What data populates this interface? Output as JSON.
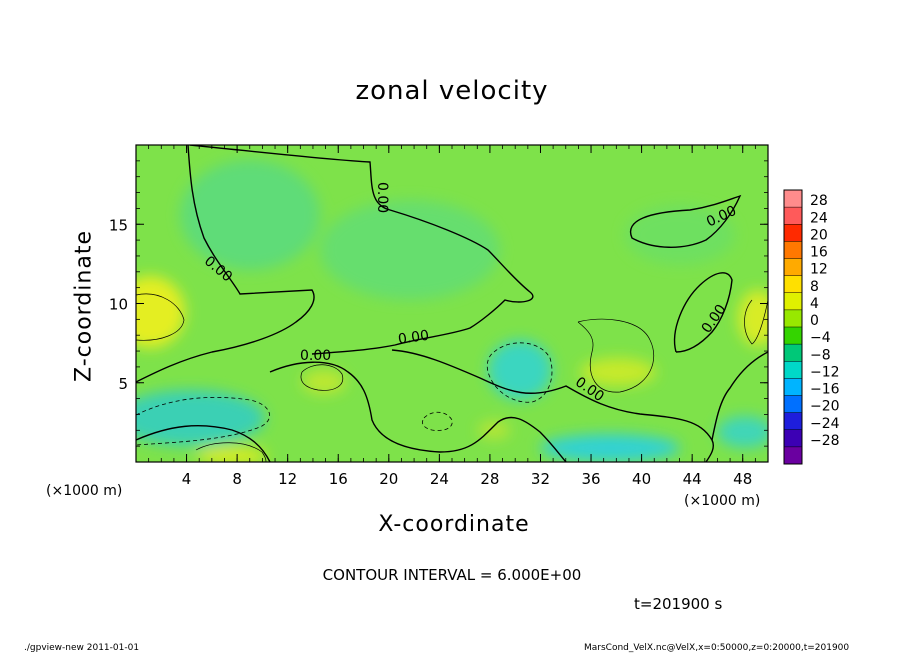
{
  "chart_data": {
    "type": "heatmap",
    "title": "zonal velocity",
    "xlabel": "X-coordinate",
    "ylabel": "Z-coordinate",
    "x_unit": "(×1000 m)",
    "xlim": [
      0,
      50
    ],
    "ylim": [
      0,
      20
    ],
    "x_ticks": [
      4,
      8,
      12,
      16,
      20,
      24,
      28,
      32,
      36,
      40,
      44,
      48
    ],
    "y_ticks": [
      5,
      10,
      15
    ],
    "colorbar": {
      "ticks": [
        28,
        24,
        20,
        16,
        12,
        8,
        4,
        0,
        -4,
        -8,
        -12,
        -16,
        -20,
        -24,
        -28
      ],
      "colors": [
        "#ff8c8c",
        "#ff5a5a",
        "#ff2a00",
        "#ff7800",
        "#ffaa00",
        "#ffe000",
        "#e0f000",
        "#98e800",
        "#34d400",
        "#00c878",
        "#00d8c8",
        "#00b4ff",
        "#0070ff",
        "#1e1edc",
        "#3c00b4",
        "#6a00a0"
      ]
    },
    "contour_interval": "CONTOUR INTERVAL = 6.000E+00",
    "contour_label": "0.00",
    "time": "t=201900 s"
  },
  "footer": {
    "left": "./gpview-new   2011-01-01",
    "right": "MarsCond_VelX.nc@VelX,x=0:50000,z=0:20000,t=201900"
  }
}
